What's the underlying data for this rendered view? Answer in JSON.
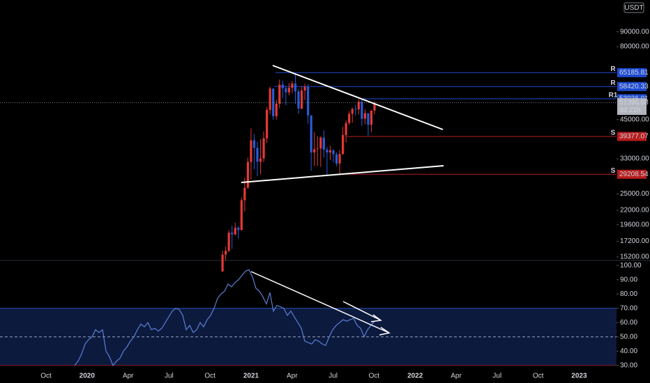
{
  "chart_data": [
    {
      "type": "candlestick",
      "unit": "USDT",
      "yscale": "log",
      "ylim": [
        14870,
        115700
      ],
      "yticks": [
        {
          "value": 15200,
          "label": "15200.00"
        },
        {
          "value": 17200,
          "label": "17200.00"
        },
        {
          "value": 19600,
          "label": "19600.00"
        },
        {
          "value": 22000,
          "label": "22000.00"
        },
        {
          "value": 25000,
          "label": "25000.00"
        },
        {
          "value": 33000,
          "label": "33000.00"
        },
        {
          "value": 45000,
          "label": "45000.00"
        },
        {
          "value": 80000,
          "label": "80000.00"
        },
        {
          "value": 90000,
          "label": "90000.00"
        }
      ],
      "xticks": [
        "Oct",
        "2020",
        "Apr",
        "Jul",
        "Oct",
        "2021",
        "Apr",
        "Jul",
        "Oct",
        "2022",
        "Apr",
        "Jul",
        "Oct",
        "2023"
      ],
      "up_color": "#e53935",
      "down_color": "#2a5bd7",
      "open": [
        13560,
        15480,
        15960,
        18420,
        18180,
        19150,
        18800,
        23800,
        26270,
        32180,
        38200,
        36000,
        32250,
        33100,
        38800,
        48600,
        57500,
        46200,
        51000,
        59300,
        57600,
        55800,
        57800,
        59800,
        56200,
        49100,
        56600,
        58300,
        46500,
        34700,
        35600,
        35800,
        39000,
        35500,
        34700,
        35300,
        34200,
        31800,
        34300,
        39800,
        43800,
        47100,
        48900,
        48800,
        51800,
        45300,
        47300,
        43200,
        48300
      ],
      "high": [
        15970,
        16480,
        18800,
        19470,
        19920,
        19420,
        24300,
        28400,
        33300,
        41950,
        40100,
        37850,
        38500,
        40950,
        49700,
        58350,
        57500,
        52600,
        61700,
        61200,
        58700,
        60100,
        61100,
        64900,
        57200,
        58400,
        59700,
        59500,
        46500,
        40800,
        39400,
        39500,
        41300,
        36200,
        36600,
        35600,
        34700,
        35400,
        42500,
        44700,
        48100,
        49500,
        50500,
        52900,
        52900,
        48800,
        47400,
        48400,
        51900
      ],
      "low": [
        13520,
        14800,
        15800,
        16200,
        18000,
        17600,
        18750,
        21800,
        26000,
        28100,
        30400,
        28800,
        29250,
        32200,
        37400,
        47000,
        44900,
        45000,
        49200,
        53300,
        50400,
        54500,
        55500,
        50900,
        47000,
        48800,
        52400,
        43500,
        30000,
        31200,
        31200,
        31000,
        33300,
        28800,
        32700,
        32100,
        31100,
        29300,
        34000,
        37600,
        43100,
        43900,
        46400,
        46800,
        42800,
        43400,
        39600,
        40700,
        46900
      ],
      "close": [
        15480,
        15960,
        18420,
        18180,
        19150,
        18800,
        23800,
        26270,
        32180,
        38200,
        36000,
        32250,
        33100,
        38800,
        48600,
        57500,
        46200,
        51000,
        59300,
        57600,
        55800,
        57800,
        59800,
        56200,
        49100,
        56600,
        58300,
        46500,
        34700,
        35600,
        35800,
        39000,
        35500,
        34700,
        35300,
        34200,
        31800,
        34300,
        39800,
        43800,
        47100,
        48900,
        48800,
        51800,
        45300,
        47300,
        43200,
        48300,
        51396.68
      ],
      "countdown": "4d 21h",
      "levels": [
        {
          "label": "R",
          "value": 65185.81,
          "color": "#1e4bd2"
        },
        {
          "label": "R",
          "value": 58420.33,
          "color": "#1e4bd2"
        },
        {
          "label": "R1",
          "value": 53036.01,
          "color": "#1e4bd2"
        },
        {
          "label": "S",
          "value": 39377.07,
          "color": "#b71c1c"
        },
        {
          "label": "S",
          "value": 29208.54,
          "color": "#b71c1c"
        }
      ]
    },
    {
      "type": "line",
      "color": "#5b7fd6",
      "ylim": [
        25,
        103
      ],
      "yticks": [
        {
          "value": 30,
          "label": "30.00"
        },
        {
          "value": 40,
          "label": "40.00"
        },
        {
          "value": 50,
          "label": "50.00"
        },
        {
          "value": 60,
          "label": "60.00"
        },
        {
          "value": 70,
          "label": "70.00"
        },
        {
          "value": 80,
          "label": "80.00"
        },
        {
          "value": 90,
          "label": "90.00"
        },
        {
          "value": 100,
          "label": "100.00"
        }
      ],
      "band": [
        30,
        70
      ],
      "midline": 50,
      "values": [
        30,
        33,
        38,
        45,
        48,
        50,
        55,
        53,
        55,
        40,
        36,
        30,
        33,
        35,
        40,
        43,
        47,
        50,
        55,
        59,
        57,
        60,
        55,
        56,
        54,
        56,
        60,
        64,
        68,
        70,
        69,
        65,
        55,
        58,
        53,
        55,
        60,
        57,
        62,
        65,
        70,
        77,
        80,
        82,
        87,
        85,
        88,
        90,
        93,
        96,
        97,
        92,
        84,
        82,
        78,
        73,
        81,
        68,
        72,
        71,
        70,
        65,
        68,
        64,
        60,
        56,
        47,
        46,
        45,
        48,
        47,
        45,
        44,
        50,
        55,
        58,
        60,
        62,
        61,
        62,
        63,
        58,
        56,
        50,
        55,
        58,
        61
      ]
    }
  ]
}
